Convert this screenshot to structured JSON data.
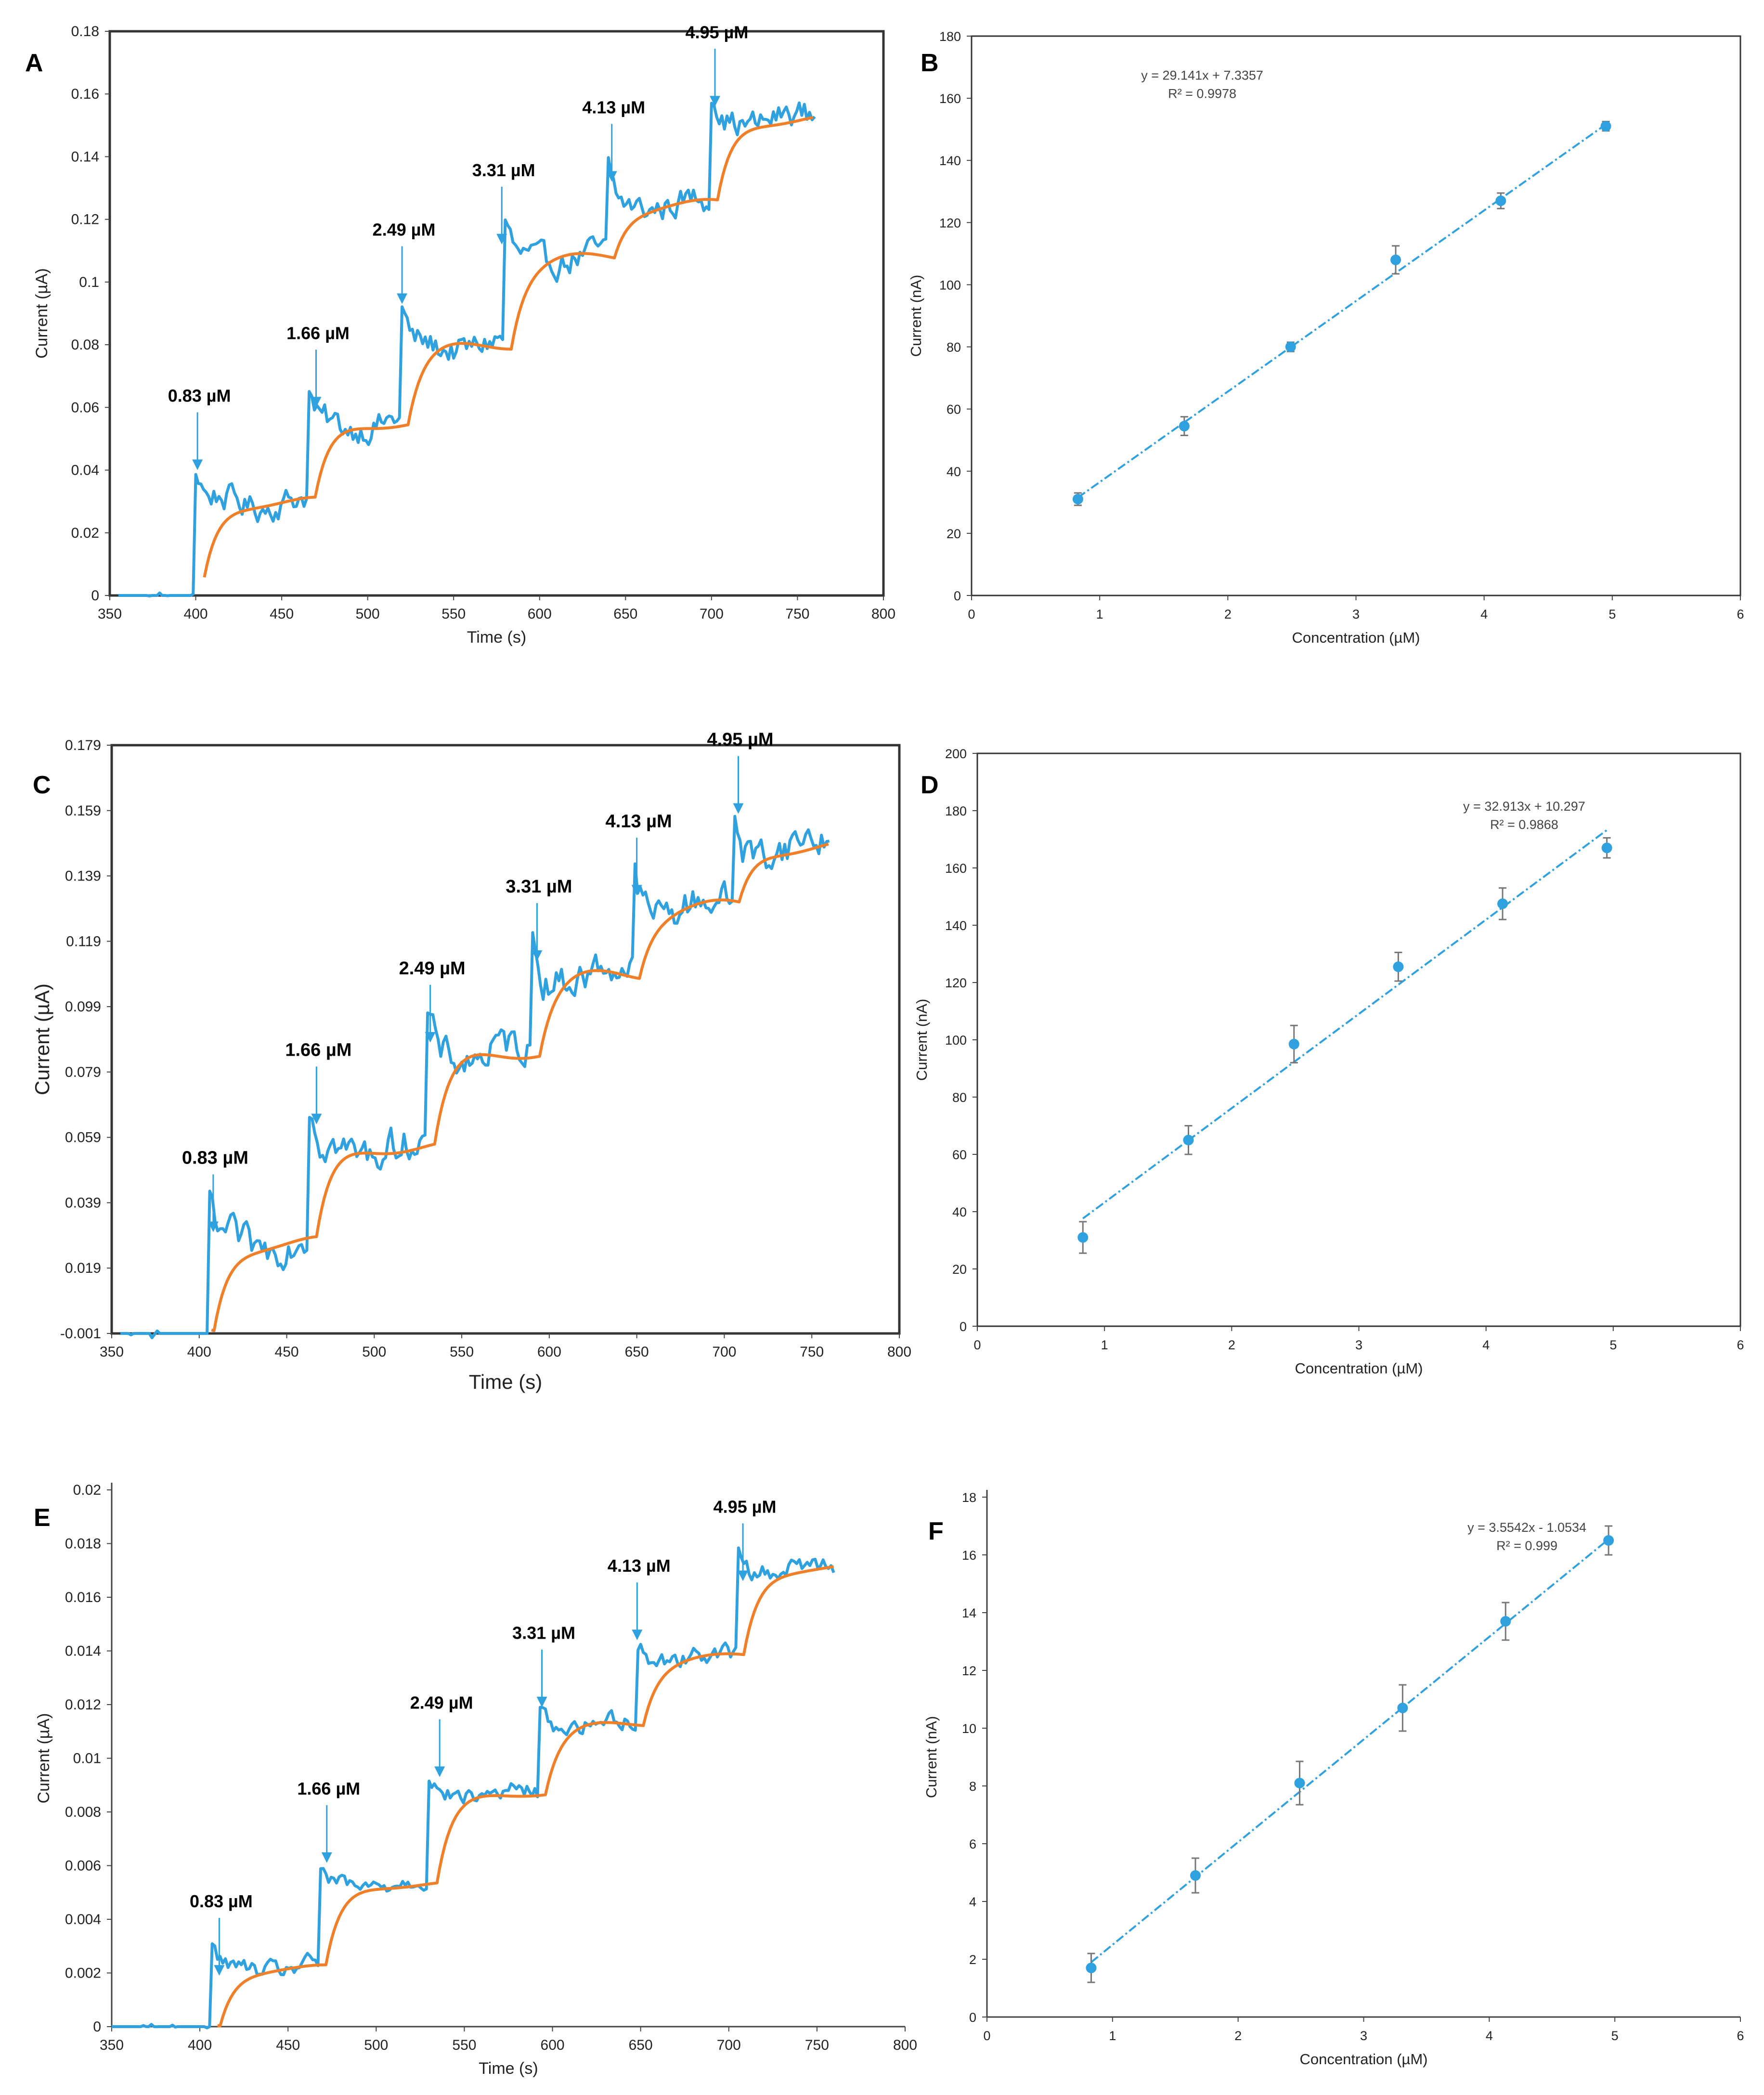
{
  "colors": {
    "raw": "#2FA1DE",
    "smooth": "#F07F2A",
    "point": "#2FA1DE",
    "errbar": "#777777",
    "fit": "#2FA1DE"
  },
  "chart_data": [
    {
      "id": "A",
      "type": "line",
      "label": "A",
      "xlabel": "Time (s)",
      "ylabel": "Current (µA)",
      "xlim": [
        350,
        800
      ],
      "ylim": [
        0,
        0.18
      ],
      "xticks": [
        "350",
        "400",
        "450",
        "500",
        "550",
        "600",
        "650",
        "700",
        "750",
        "800"
      ],
      "yticks": [
        "0",
        "0.02",
        "0.04",
        "0.06",
        "0.08",
        "0.1",
        "0.12",
        "0.14",
        "0.16",
        "0.18"
      ],
      "start": 400,
      "base": 0.0,
      "noise": 0.004,
      "levels": [
        [
          400,
          0.03
        ],
        [
          465,
          0.055
        ],
        [
          520,
          0.08
        ],
        [
          580,
          0.108
        ],
        [
          640,
          0.125
        ],
        [
          700,
          0.152
        ]
      ],
      "series": [
        {
          "name": "raw",
          "x_range": [
            355,
            760
          ]
        },
        {
          "name": "smoothed",
          "x_range": [
            405,
            760
          ]
        }
      ],
      "annotations": [
        {
          "text": "0.83 µM",
          "x": 401,
          "y": 0.04
        },
        {
          "text": "1.66 µM",
          "x": 470,
          "y": 0.06
        },
        {
          "text": "2.49 µM",
          "x": 520,
          "y": 0.093
        },
        {
          "text": "3.31 µM",
          "x": 578,
          "y": 0.112
        },
        {
          "text": "4.13 µM",
          "x": 642,
          "y": 0.132
        },
        {
          "text": "4.95 µM",
          "x": 702,
          "y": 0.156
        }
      ]
    },
    {
      "id": "B",
      "type": "scatter",
      "label": "B",
      "xlabel": "Concentration (µM)",
      "ylabel": "Current (nA)",
      "xlim": [
        0,
        6
      ],
      "ylim": [
        0,
        180
      ],
      "xticks": [
        "0",
        "1",
        "2",
        "3",
        "4",
        "5",
        "6"
      ],
      "yticks": [
        "0",
        "20",
        "40",
        "60",
        "80",
        "100",
        "120",
        "140",
        "160",
        "180"
      ],
      "x": [
        0.83,
        1.66,
        2.49,
        3.31,
        4.13,
        4.95
      ],
      "y": [
        31,
        54.5,
        80,
        108,
        127,
        151
      ],
      "err": [
        2,
        3,
        1.5,
        4.5,
        2.5,
        1.5
      ],
      "fit": {
        "slope": 29.141,
        "intercept": 7.3357,
        "x_range": [
          0.83,
          4.95
        ]
      },
      "equation": "y = 29.141x + 7.3357",
      "r2": "R² = 0.9978"
    },
    {
      "id": "C",
      "type": "line",
      "label": "C",
      "xlabel": "Time (s)",
      "ylabel": "Current (µA)",
      "xlim": [
        350,
        800
      ],
      "ylim": [
        -0.001,
        0.179
      ],
      "xticks": [
        "350",
        "400",
        "450",
        "500",
        "550",
        "600",
        "650",
        "700",
        "750",
        "800"
      ],
      "yticks": [
        "-0.001",
        "0.019",
        "0.039",
        "0.059",
        "0.079",
        "0.099",
        "0.119",
        "0.139",
        "0.159",
        "0.179"
      ],
      "start": 405,
      "base": -0.001,
      "noise": 0.005,
      "levels": [
        [
          405,
          0.027
        ],
        [
          463,
          0.056
        ],
        [
          530,
          0.085
        ],
        [
          590,
          0.109
        ],
        [
          648,
          0.13
        ],
        [
          705,
          0.148
        ]
      ],
      "series": [
        {
          "name": "raw",
          "x_range": [
            355,
            760
          ]
        },
        {
          "name": "smoothed",
          "x_range": [
            407,
            760
          ]
        }
      ],
      "annotations": [
        {
          "text": "0.83 µM",
          "x": 408,
          "y": 0.03
        },
        {
          "text": "1.66 µM",
          "x": 467,
          "y": 0.063
        },
        {
          "text": "2.49 µM",
          "x": 532,
          "y": 0.088
        },
        {
          "text": "3.31 µM",
          "x": 593,
          "y": 0.113
        },
        {
          "text": "4.13 µM",
          "x": 650,
          "y": 0.133
        },
        {
          "text": "4.95 µM",
          "x": 708,
          "y": 0.158
        }
      ]
    },
    {
      "id": "D",
      "type": "scatter",
      "label": "D",
      "xlabel": "Concentration (µM)",
      "ylabel": "Current (nA)",
      "xlim": [
        0,
        6
      ],
      "ylim": [
        0,
        200
      ],
      "xticks": [
        "0",
        "1",
        "2",
        "3",
        "4",
        "5",
        "6"
      ],
      "yticks": [
        "0",
        "20",
        "40",
        "60",
        "80",
        "100",
        "120",
        "140",
        "160",
        "180",
        "200"
      ],
      "x": [
        0.83,
        1.66,
        2.49,
        3.31,
        4.13,
        4.95
      ],
      "y": [
        31,
        65,
        98.5,
        125.5,
        147.5,
        167
      ],
      "err": [
        5.5,
        5,
        6.5,
        5,
        5.5,
        3.5
      ],
      "fit": {
        "slope": 32.913,
        "intercept": 10.297,
        "x_range": [
          0.83,
          4.95
        ]
      },
      "equation": "y = 32.913x + 10.297",
      "r2": "R² = 0.9868"
    },
    {
      "id": "E",
      "type": "line",
      "label": "E",
      "xlabel": "Time (s)",
      "ylabel": "Current (µA)",
      "xlim": [
        350,
        800
      ],
      "ylim": [
        0,
        0.02
      ],
      "xticks": [
        "350",
        "400",
        "450",
        "500",
        "550",
        "600",
        "650",
        "700",
        "750",
        "800"
      ],
      "yticks": [
        "0",
        "0.002",
        "0.004",
        "0.006",
        "0.008",
        "0.01",
        "0.012",
        "0.014",
        "0.016",
        "0.018",
        "0.02"
      ],
      "start": 407,
      "base": 0.0,
      "noise": 0.0003,
      "levels": [
        [
          407,
          0.0022
        ],
        [
          468,
          0.0053
        ],
        [
          530,
          0.0087
        ],
        [
          592,
          0.0113
        ],
        [
          648,
          0.0138
        ],
        [
          705,
          0.0171
        ]
      ],
      "series": [
        {
          "name": "raw",
          "x_range": [
            350,
            760
          ]
        },
        {
          "name": "smoothed",
          "x_range": [
            410,
            760
          ]
        }
      ],
      "annotations": [
        {
          "text": "0.83 µM",
          "x": 411,
          "y": 0.0019
        },
        {
          "text": "1.66 µM",
          "x": 472,
          "y": 0.0061
        },
        {
          "text": "2.49 µM",
          "x": 536,
          "y": 0.0093
        },
        {
          "text": "3.31 µM",
          "x": 594,
          "y": 0.0119
        },
        {
          "text": "4.13 µM",
          "x": 648,
          "y": 0.0144
        },
        {
          "text": "4.95 µM",
          "x": 708,
          "y": 0.0166
        }
      ]
    },
    {
      "id": "F",
      "type": "scatter",
      "label": "F",
      "xlabel": "Concentration (µM)",
      "ylabel": "Current (nA)",
      "xlim": [
        0,
        6
      ],
      "ylim": [
        0,
        18
      ],
      "xticks": [
        "0",
        "1",
        "2",
        "3",
        "4",
        "5",
        "6"
      ],
      "yticks": [
        "0",
        "2",
        "4",
        "6",
        "8",
        "10",
        "12",
        "14",
        "16",
        "18"
      ],
      "x": [
        0.83,
        1.66,
        2.49,
        3.31,
        4.13,
        4.95
      ],
      "y": [
        1.7,
        4.9,
        8.1,
        10.7,
        13.7,
        16.5
      ],
      "err": [
        0.5,
        0.6,
        0.75,
        0.8,
        0.65,
        0.5
      ],
      "fit": {
        "slope": 3.5542,
        "intercept": -1.0534,
        "x_range": [
          0.83,
          4.95
        ]
      },
      "equation": "y = 3.5542x - 1.0534",
      "r2": "R² = 0.999"
    }
  ]
}
